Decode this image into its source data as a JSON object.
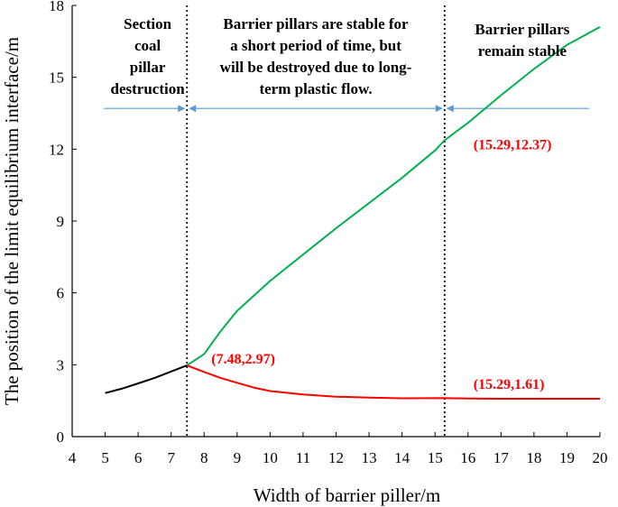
{
  "chart_data": {
    "type": "line",
    "title": "",
    "xlabel": "Width of barrier piller/m",
    "ylabel": "The position of the limit equilibrium interface/m",
    "xlim": [
      4,
      20
    ],
    "ylim": [
      0,
      18
    ],
    "x_ticks": [
      "4",
      "5",
      "6",
      "7",
      "8",
      "9",
      "10",
      "11",
      "12",
      "13",
      "14",
      "15",
      "16",
      "17",
      "18",
      "19",
      "20"
    ],
    "y_ticks": [
      "0",
      "3",
      "6",
      "9",
      "12",
      "15",
      "18"
    ],
    "grid": false,
    "series": [
      {
        "color": "#000000",
        "points": [
          [
            5,
            1.82
          ],
          [
            5.5,
            2.0
          ],
          [
            6,
            2.22
          ],
          [
            6.5,
            2.45
          ],
          [
            7,
            2.72
          ],
          [
            7.48,
            2.97
          ]
        ]
      },
      {
        "color": "#00b050",
        "points": [
          [
            7.48,
            2.97
          ],
          [
            8,
            3.45
          ],
          [
            8.5,
            4.4
          ],
          [
            9,
            5.25
          ],
          [
            10,
            6.5
          ],
          [
            11,
            7.6
          ],
          [
            12,
            8.7
          ],
          [
            13,
            9.75
          ],
          [
            14,
            10.8
          ],
          [
            15,
            11.95
          ],
          [
            15.29,
            12.37
          ],
          [
            16,
            13.1
          ],
          [
            17,
            14.25
          ],
          [
            18,
            15.35
          ],
          [
            19,
            16.35
          ],
          [
            20,
            17.1
          ]
        ]
      },
      {
        "color": "#ff0000",
        "points": [
          [
            7.48,
            2.97
          ],
          [
            8,
            2.7
          ],
          [
            8.5,
            2.45
          ],
          [
            9,
            2.25
          ],
          [
            9.5,
            2.05
          ],
          [
            10,
            1.9
          ],
          [
            11,
            1.76
          ],
          [
            12,
            1.67
          ],
          [
            13,
            1.63
          ],
          [
            14,
            1.6
          ],
          [
            15.29,
            1.61
          ],
          [
            16,
            1.59
          ],
          [
            17,
            1.58
          ],
          [
            18,
            1.58
          ],
          [
            19,
            1.58
          ],
          [
            20,
            1.58
          ]
        ]
      }
    ],
    "annotations": [
      {
        "text": "(7.48,2.97)",
        "x": 7.48,
        "y": 2.97
      },
      {
        "text": "(15.29,12.37)",
        "x": 15.29,
        "y": 12.37
      },
      {
        "text": "(15.29,1.61)",
        "x": 15.29,
        "y": 1.61
      }
    ],
    "vlines": [
      7.48,
      15.29
    ],
    "arrow_line": {
      "y": 13.7,
      "color": "#5b9bd5"
    },
    "regions": [
      {
        "lines": [
          "Section",
          "coal",
          "pillar",
          "destruction"
        ]
      },
      {
        "lines": [
          "Barrier pillars are stable for",
          "a short period of time, but",
          "will be destroyed due to long-",
          "term plastic flow."
        ]
      },
      {
        "lines": [
          "Barrier pillars",
          "remain stable"
        ]
      }
    ]
  }
}
